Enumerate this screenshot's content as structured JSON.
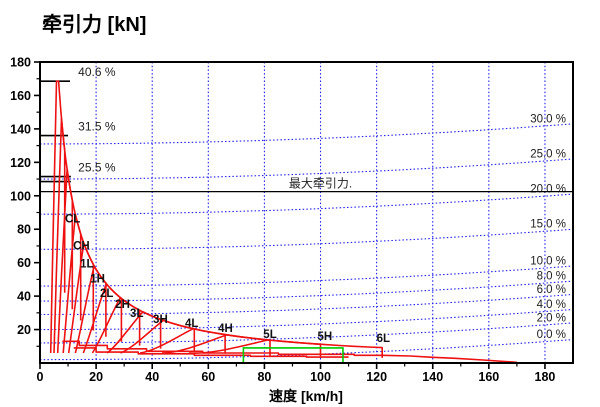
{
  "chart_data": {
    "type": "line",
    "title": "牵引力 [kN]",
    "xlabel": "速度 [km/h]",
    "ylabel": "牵引力 [kN]",
    "xlim": [
      0,
      190
    ],
    "ylim": [
      0,
      180
    ],
    "x_ticks": [
      0,
      20,
      40,
      60,
      80,
      100,
      120,
      140,
      160,
      180
    ],
    "x_minor_ticks": [
      10,
      30,
      50,
      70,
      90,
      110,
      130,
      150,
      170
    ],
    "y_ticks": [
      20,
      40,
      60,
      80,
      100,
      120,
      140,
      160,
      180
    ],
    "y_minor_ticks": [
      10,
      30,
      50,
      70,
      90,
      110,
      130,
      150,
      170
    ],
    "colors": {
      "grid": "#2222ee",
      "grade_line": "#2222ee",
      "curve": "#ee1111",
      "marker": "#00cc00",
      "axis": "#000000",
      "text": "#222222"
    },
    "grade_rise": 12,
    "grade_lines": [
      {
        "label": "30.0 %",
        "f0": 131
      },
      {
        "label": "25.0 %",
        "f0": 110
      },
      {
        "label": "20.0 %",
        "f0": 89
      },
      {
        "label": "15.0 %",
        "f0": 68
      },
      {
        "label": "10.0 %",
        "f0": 46
      },
      {
        "label": "8.0 %",
        "f0": 37
      },
      {
        "label": "6.0 %",
        "f0": 29
      },
      {
        "label": "4.0 %",
        "f0": 20
      },
      {
        "label": "2.0 %",
        "f0": 12
      },
      {
        "label": "0.0 %",
        "f0": 2
      }
    ],
    "left_marks": [
      {
        "label": "40.6 %",
        "f": 168.5,
        "v_end": 10.7,
        "label_v": 13.6
      },
      {
        "label": "31.5 %",
        "f": 136.0,
        "v_end": 10.0,
        "label_v": 13.6
      },
      {
        "label": "25.5 %",
        "f": 111.5,
        "f2": 108.5,
        "v_end": 11.0,
        "label_v": 13.6
      }
    ],
    "max_line": {
      "label": "最大牵引力.",
      "f": 102.5,
      "label_v": 100
    },
    "envelope": {
      "power": 1120,
      "f_cap": 168.5,
      "peak_div": 1.5,
      "start_div": 2.3,
      "base_f": 6,
      "drop_frac": 0.33
    },
    "gears": [
      {
        "name": "CL",
        "v_end": 8.8,
        "label_v": 8.9,
        "label_f": 84
      },
      {
        "name": "CH",
        "v_end": 11.5,
        "label_v": 11.8,
        "label_f": 68
      },
      {
        "name": "1L",
        "v_end": 14.5,
        "label_v": 14.3,
        "label_f": 57
      },
      {
        "name": "1H",
        "v_end": 19,
        "label_v": 17.9,
        "label_f": 48
      },
      {
        "name": "2L",
        "v_end": 23.5,
        "label_v": 21.4,
        "label_f": 39.5
      },
      {
        "name": "2H",
        "v_end": 29,
        "label_v": 26.8,
        "label_f": 33
      },
      {
        "name": "3L",
        "v_end": 35.5,
        "label_v": 32.1,
        "label_f": 27.5
      },
      {
        "name": "3H",
        "v_end": 43,
        "label_v": 40.3,
        "label_f": 24
      },
      {
        "name": "4L",
        "v_end": 55,
        "label_v": 51.7,
        "label_f": 21.5
      },
      {
        "name": "4H",
        "v_end": 66,
        "label_v": 63.5,
        "label_f": 18.5
      },
      {
        "name": "5L",
        "v_end": 82,
        "label_v": 79.6,
        "label_f": 15
      },
      {
        "name": "5H",
        "v_end": 100,
        "label_v": 98.9,
        "label_f": 13.7
      },
      {
        "name": "6L",
        "v_end": 122,
        "label_v": 120,
        "label_f": 12.5
      }
    ],
    "bottom_lines": [
      [
        [
          8,
          13
        ],
        [
          14,
          13
        ],
        [
          14,
          10.5
        ],
        [
          24,
          10.5
        ],
        [
          24,
          8.5
        ],
        [
          38,
          8.5
        ],
        [
          38,
          7
        ],
        [
          58,
          7
        ],
        [
          58,
          6
        ],
        [
          85,
          6
        ],
        [
          85,
          5.2
        ],
        [
          112,
          5.2
        ],
        [
          112,
          4.6
        ],
        [
          122,
          4.6
        ],
        [
          132,
          4.2
        ],
        [
          140,
          3.4
        ],
        [
          148,
          2.8
        ],
        [
          158,
          1.8
        ],
        [
          170,
          0.4
        ]
      ],
      [
        [
          12,
          9
        ],
        [
          20,
          9
        ],
        [
          20,
          6.5
        ],
        [
          35,
          6.5
        ],
        [
          35,
          5.5
        ],
        [
          55,
          5.5
        ],
        [
          55,
          4.6
        ],
        [
          75,
          4.6
        ],
        [
          75,
          4
        ],
        [
          95,
          4
        ],
        [
          95,
          3.5
        ],
        [
          110,
          3.5
        ]
      ]
    ],
    "green_marker": {
      "v1": 72.5,
      "v2": 108,
      "f": 9
    }
  }
}
